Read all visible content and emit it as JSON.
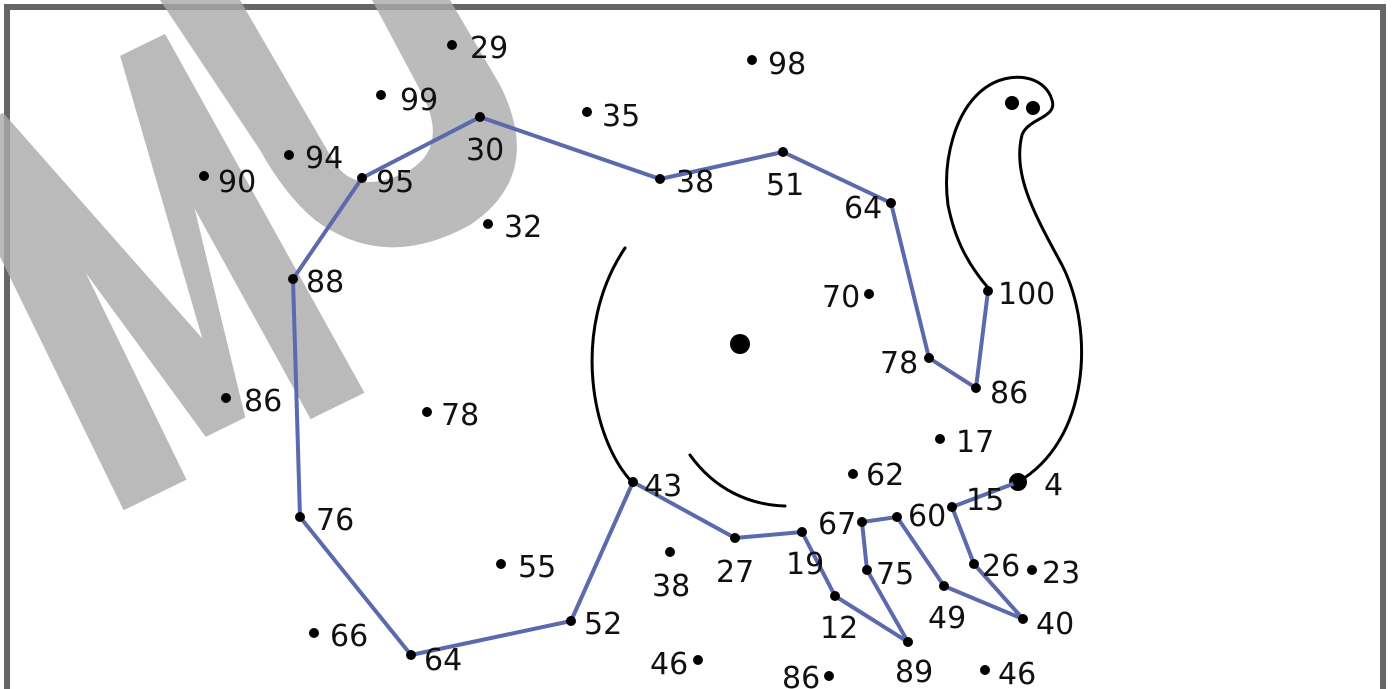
{
  "page": {
    "title": "",
    "watermark_text": "MU"
  },
  "colors": {
    "frame": "#666666",
    "connecting_line": "#5a6aac",
    "dot": "#000000",
    "outline": "#000000",
    "watermark": "#aaaaaa"
  },
  "puzzle": {
    "labels": [
      "29",
      "98",
      "99",
      "35",
      "30",
      "94",
      "95",
      "90",
      "38",
      "51",
      "64",
      "32",
      "88",
      "70",
      "100",
      "78",
      "86",
      "86",
      "78",
      "17",
      "62",
      "4",
      "43",
      "15",
      "60",
      "67",
      "76",
      "27",
      "19",
      "75",
      "26",
      "23",
      "55",
      "38",
      "12",
      "49",
      "40",
      "66",
      "52",
      "64",
      "46",
      "89",
      "86",
      "46"
    ],
    "connected_path": [
      "30",
      "38",
      "51",
      "64",
      "78",
      "86",
      "100"
    ],
    "connected_path_2": [
      "30",
      "95",
      "88",
      "76",
      "64",
      "52",
      "43",
      "27",
      "19",
      "12",
      "89",
      "75",
      "67",
      "60",
      "49",
      "40",
      "26",
      "15",
      "4"
    ]
  }
}
